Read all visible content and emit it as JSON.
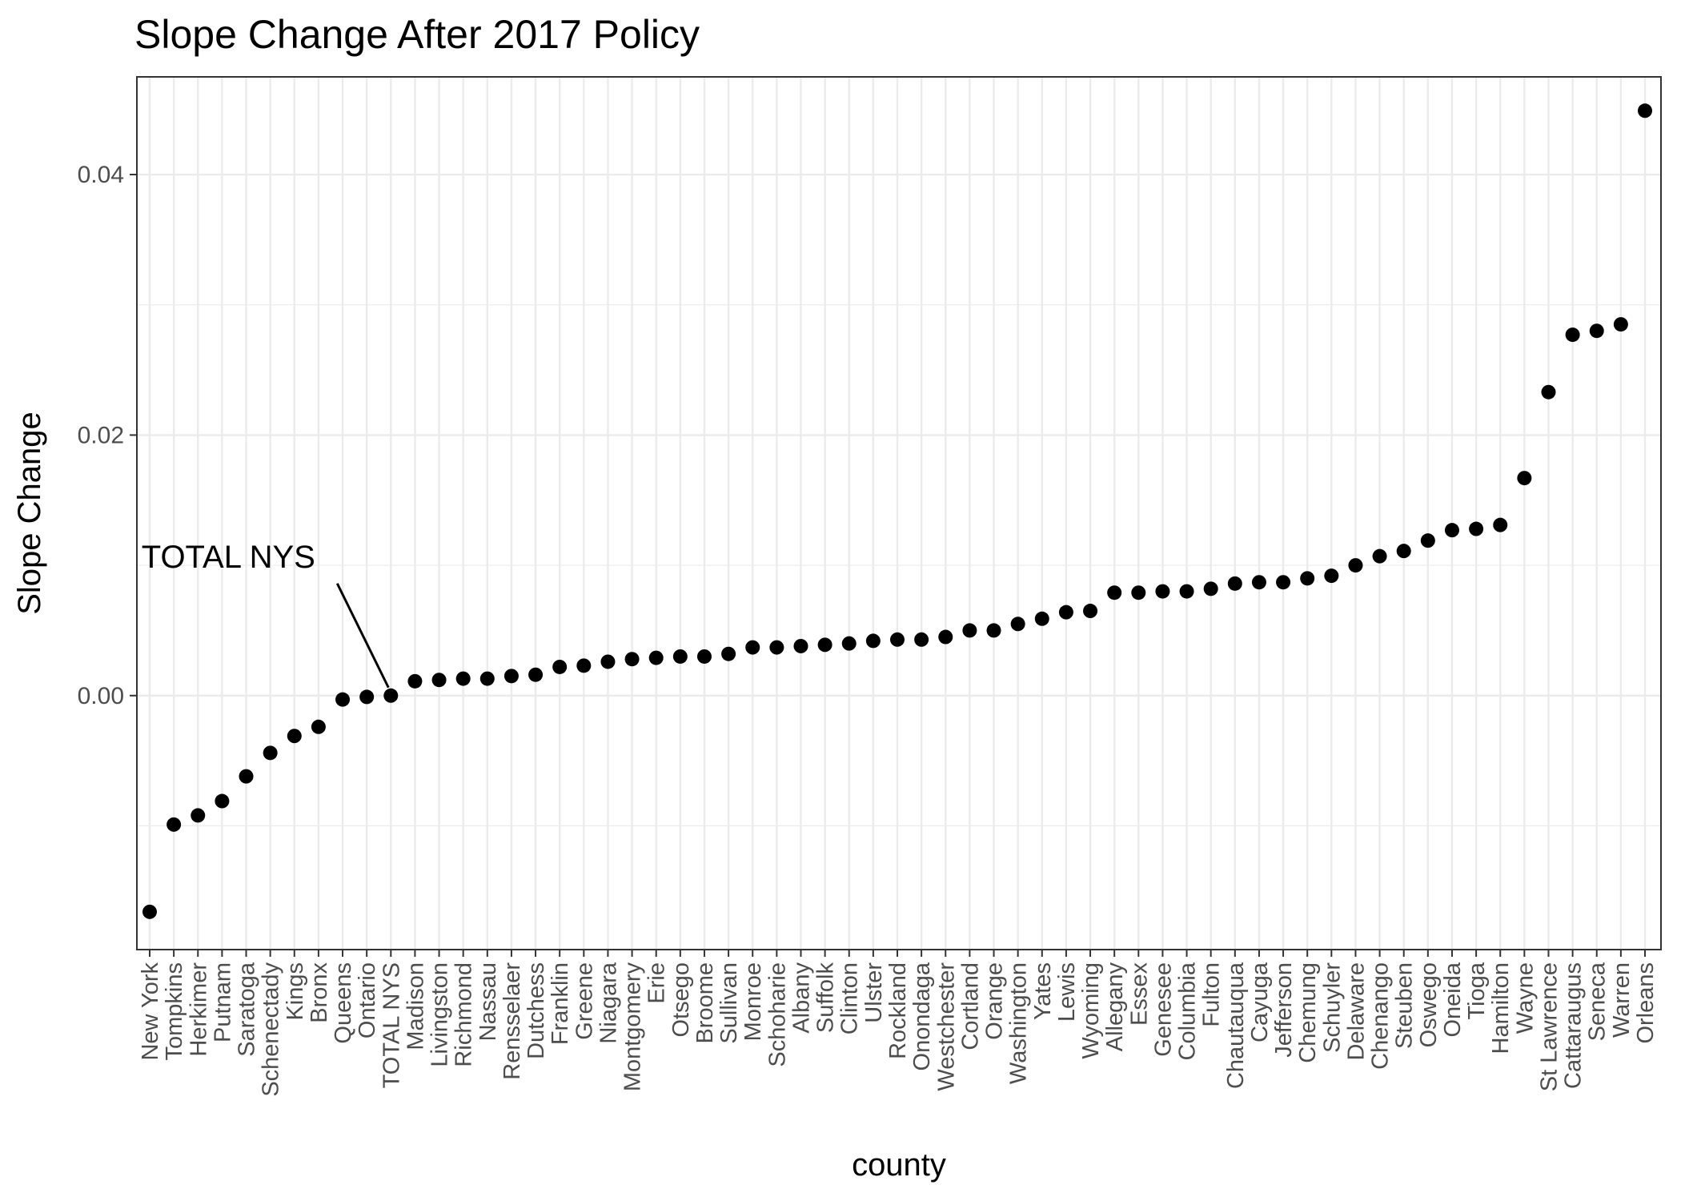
{
  "chart_data": {
    "type": "scatter",
    "title": "Slope Change After 2017 Policy",
    "xlabel": "county",
    "ylabel": "Slope Change",
    "ylim": [
      -0.0195,
      0.0475
    ],
    "yticks": [
      0.0,
      0.02,
      0.04
    ],
    "ytick_labels": [
      "0.00",
      "0.02",
      "0.04"
    ],
    "grid": true,
    "legend": "none",
    "point_color": "#000000",
    "categories": [
      "New York",
      "Tompkins",
      "Herkimer",
      "Putnam",
      "Saratoga",
      "Schenectady",
      "Kings",
      "Bronx",
      "Queens",
      "Ontario",
      "TOTAL NYS",
      "Madison",
      "Livingston",
      "Richmond",
      "Nassau",
      "Rensselaer",
      "Dutchess",
      "Franklin",
      "Greene",
      "Niagara",
      "Montgomery",
      "Erie",
      "Otsego",
      "Broome",
      "Sullivan",
      "Monroe",
      "Schoharie",
      "Albany",
      "Suffolk",
      "Clinton",
      "Ulster",
      "Rockland",
      "Onondaga",
      "Westchester",
      "Cortland",
      "Orange",
      "Washington",
      "Yates",
      "Lewis",
      "Wyoming",
      "Allegany",
      "Essex",
      "Genesee",
      "Columbia",
      "Fulton",
      "Chautauqua",
      "Cayuga",
      "Jefferson",
      "Chemung",
      "Schuyler",
      "Delaware",
      "Chenango",
      "Steuben",
      "Oswego",
      "Oneida",
      "Tioga",
      "Hamilton",
      "Wayne",
      "St Lawrence",
      "Cattaraugus",
      "Seneca",
      "Warren",
      "Orleans"
    ],
    "values": [
      -0.0166,
      -0.0099,
      -0.0092,
      -0.0081,
      -0.0062,
      -0.0044,
      -0.0031,
      -0.0024,
      -0.0003,
      -0.0001,
      0.0,
      0.0011,
      0.0012,
      0.0013,
      0.0013,
      0.0015,
      0.0016,
      0.0022,
      0.0023,
      0.0026,
      0.0028,
      0.0029,
      0.003,
      0.003,
      0.0032,
      0.0037,
      0.0037,
      0.0038,
      0.0039,
      0.004,
      0.0042,
      0.0043,
      0.0043,
      0.0045,
      0.005,
      0.005,
      0.0055,
      0.0059,
      0.0064,
      0.0065,
      0.0079,
      0.0079,
      0.008,
      0.008,
      0.0082,
      0.0086,
      0.0087,
      0.0087,
      0.009,
      0.0092,
      0.01,
      0.0107,
      0.0111,
      0.0119,
      0.0127,
      0.0128,
      0.0131,
      0.0167,
      0.0233,
      0.0277,
      0.028,
      0.0285,
      0.0449
    ],
    "annotations": [
      {
        "text": "TOTAL NYS",
        "category": "TOTAL NYS",
        "value": 0.0
      }
    ]
  }
}
